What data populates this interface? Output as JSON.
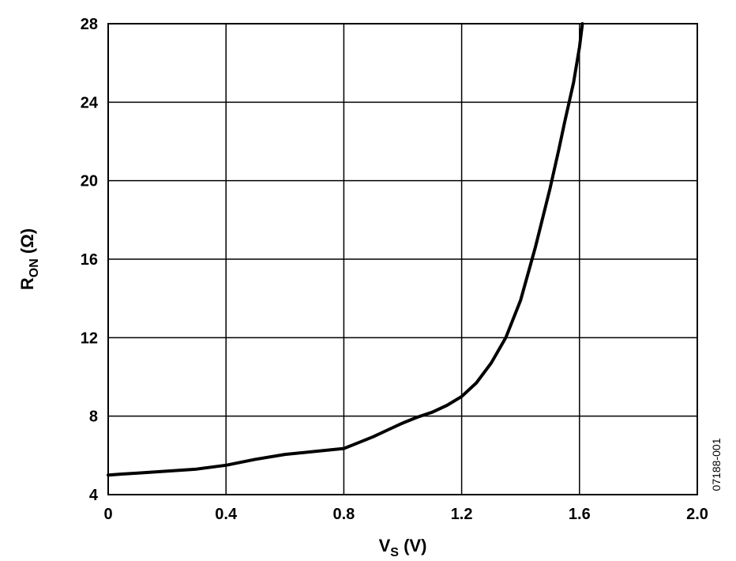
{
  "chart_data": {
    "type": "line",
    "xlabel": {
      "main": "V",
      "sub": "S",
      "unit": " (V)"
    },
    "ylabel": {
      "main": "R",
      "sub": "ON",
      "unit": " (Ω)"
    },
    "xlim": [
      0,
      2.0
    ],
    "ylim": [
      4,
      28
    ],
    "xticks": [
      "0",
      "0.4",
      "0.8",
      "1.2",
      "1.6",
      "2.0"
    ],
    "yticks": [
      "4",
      "8",
      "12",
      "16",
      "20",
      "24",
      "28"
    ],
    "xtick_values": [
      0,
      0.4,
      0.8,
      1.2,
      1.6,
      2.0
    ],
    "ytick_values": [
      4,
      8,
      12,
      16,
      20,
      24,
      28
    ],
    "grid": true,
    "figure_id": "07188-001",
    "series": [
      {
        "x": [
          0,
          0.05,
          0.1,
          0.2,
          0.3,
          0.4,
          0.5,
          0.6,
          0.7,
          0.8,
          0.85,
          0.9,
          0.95,
          1.0,
          1.05,
          1.1,
          1.15,
          1.2,
          1.25,
          1.3,
          1.35,
          1.4,
          1.45,
          1.5,
          1.53,
          1.55,
          1.58,
          1.6,
          1.61
        ],
        "y": [
          5.0,
          5.05,
          5.1,
          5.2,
          5.3,
          5.5,
          5.8,
          6.05,
          6.2,
          6.35,
          6.65,
          6.95,
          7.3,
          7.65,
          7.95,
          8.2,
          8.55,
          9.0,
          9.7,
          10.7,
          12.0,
          13.9,
          16.6,
          19.6,
          21.6,
          23.0,
          25.0,
          26.8,
          28.0
        ]
      }
    ]
  }
}
